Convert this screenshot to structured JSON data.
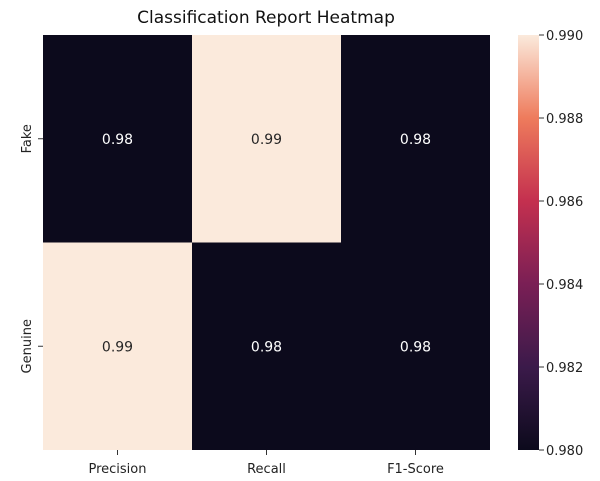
{
  "chart_data": {
    "type": "heatmap",
    "title": "Classification Report Heatmap",
    "x_categories": [
      "Precision",
      "Recall",
      "F1-Score"
    ],
    "y_categories": [
      "Fake",
      "Genuine"
    ],
    "values": [
      [
        0.98,
        0.99,
        0.98
      ],
      [
        0.99,
        0.98,
        0.98
      ]
    ],
    "cell_labels": [
      [
        "0.98",
        "0.99",
        "0.98"
      ],
      [
        "0.99",
        "0.98",
        "0.98"
      ]
    ],
    "colorbar": {
      "range": [
        0.98,
        0.99
      ],
      "ticks": [
        "0.980",
        "0.982",
        "0.984",
        "0.986",
        "0.988",
        "0.990"
      ],
      "colors": [
        "#0c0a1c",
        "#3b1a4a",
        "#7a1f55",
        "#c4304f",
        "#ee7b5c",
        "#fbeadc"
      ]
    },
    "xlabel": "",
    "ylabel": ""
  }
}
